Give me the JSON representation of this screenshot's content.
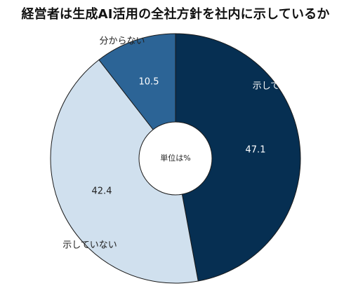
{
  "chart_data": {
    "type": "pie",
    "title": "経営者は生成AI活用の全社方針を社内に示しているか",
    "center_label": "単位は%",
    "slices": [
      {
        "label": "示している",
        "value": 47.1,
        "color": "#062f52"
      },
      {
        "label": "示していない",
        "value": 42.4,
        "color": "#d0e0ee"
      },
      {
        "label": "分からない",
        "value": 10.5,
        "color": "#2c6496"
      }
    ],
    "start_direction": "top",
    "order": "clockwise",
    "donut": true
  }
}
